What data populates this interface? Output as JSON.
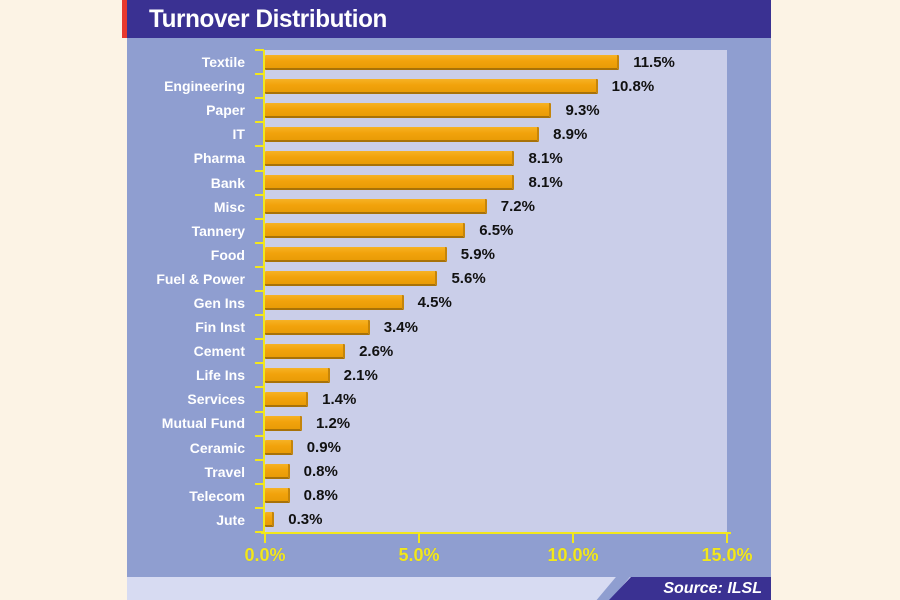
{
  "title": "Turnover Distribution",
  "source": "Source: ILSL",
  "colors": {
    "page_bg": "#FCF3E5",
    "title_bar": "#3A3192",
    "chart_bg": "#8F9ED0",
    "plot_bg": "#CACEE9",
    "bar": "#F2A30C",
    "bar_shadow": "#A87208",
    "axis": "#F2E71C",
    "accent_red": "#E8392F",
    "category_text": "#FFFFFF",
    "value_text": "#111111",
    "bottom_band": "#D7DBF2",
    "source_bg": "#3A3192"
  },
  "chart_data": {
    "type": "bar",
    "orientation": "horizontal",
    "title": "Turnover Distribution",
    "categories": [
      "Textile",
      "Engineering",
      "Paper",
      "IT",
      "Pharma",
      "Bank",
      "Misc",
      "Tannery",
      "Food",
      "Fuel & Power",
      "Gen Ins",
      "Fin Inst",
      "Cement",
      "Life Ins",
      "Services",
      "Mutual Fund",
      "Ceramic",
      "Travel",
      "Telecom",
      "Jute"
    ],
    "values": [
      11.5,
      10.8,
      9.3,
      8.9,
      8.1,
      8.1,
      7.2,
      6.5,
      5.9,
      5.6,
      4.5,
      3.4,
      2.6,
      2.1,
      1.4,
      1.2,
      0.9,
      0.8,
      0.8,
      0.3
    ],
    "value_labels": [
      "11.5%",
      "10.8%",
      "9.3%",
      "8.9%",
      "8.1%",
      "8.1%",
      "7.2%",
      "6.5%",
      "5.9%",
      "5.6%",
      "4.5%",
      "3.4%",
      "2.6%",
      "2.1%",
      "1.4%",
      "1.2%",
      "0.9%",
      "0.8%",
      "0.8%",
      "0.3%"
    ],
    "x_ticks": [
      "0.0%",
      "5.0%",
      "10.0%",
      "15.0%"
    ],
    "x_tick_values": [
      0,
      5,
      10,
      15
    ],
    "xlim": [
      0,
      15
    ],
    "xlabel": "",
    "ylabel": "",
    "grid": false,
    "legend": false,
    "bar_label_position": "right-of-bar"
  }
}
